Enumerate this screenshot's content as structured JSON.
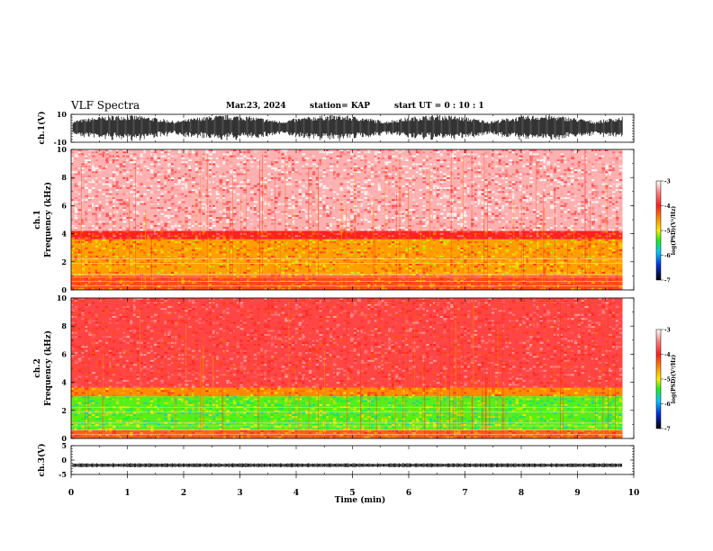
{
  "header": {
    "title": "VLF Spectra",
    "date": "Mar.23, 2024",
    "station": "station= KAP",
    "start": "start  UT =   0  : 10 : 1"
  },
  "chart_data": [
    {
      "type": "line",
      "panel": "ch1-waveform",
      "ylabel": "ch.1(V)",
      "ylim": [
        -10,
        10
      ],
      "yticks": [
        "10",
        "-10"
      ],
      "amplitude_typical": 9.5
    },
    {
      "type": "heatmap",
      "panel": "ch1-spectrogram",
      "ylabel": "ch.1\nFrequency (kHz)",
      "ylabel_line1": "ch.1",
      "ylabel_line2": "Frequency (kHz)",
      "ylim": [
        0,
        10
      ],
      "yticks": [
        "0",
        "2",
        "4",
        "6",
        "8",
        "10"
      ],
      "colorbar": {
        "label": "log(PSD)(V²/Hz)",
        "range": [
          -7,
          -3
        ],
        "ticks": [
          "-3",
          "-4",
          "-5",
          "-6",
          "-7"
        ],
        "colors": [
          "#ffffff",
          "#ff3030",
          "#ffee00",
          "#20ee20",
          "#00c8ff",
          "#0000c8",
          "#000000"
        ]
      },
      "bands": [
        {
          "from_khz": 0,
          "to_khz": 1,
          "level": -4.2
        },
        {
          "from_khz": 1,
          "to_khz": 3.6,
          "level": -4.6
        },
        {
          "from_khz": 3.6,
          "to_khz": 4.2,
          "level": -4.0
        },
        {
          "from_khz": 4.2,
          "to_khz": 10,
          "level": -3.3
        }
      ]
    },
    {
      "type": "heatmap",
      "panel": "ch2-spectrogram",
      "ylabel_line1": "ch.2",
      "ylabel_line2": "Frequency (kHz)",
      "ylim": [
        0,
        10
      ],
      "yticks": [
        "0",
        "2",
        "4",
        "6",
        "8",
        "10"
      ],
      "colorbar": {
        "label": "log(PSD)(V²/Hz)",
        "range": [
          -7,
          -3
        ],
        "ticks": [
          "-3",
          "-4",
          "-5",
          "-6",
          "-7"
        ],
        "colors": [
          "#ffffff",
          "#ff3030",
          "#ffee00",
          "#20ee20",
          "#00c8ff",
          "#0000c8",
          "#000000"
        ]
      },
      "bands": [
        {
          "from_khz": 0,
          "to_khz": 0.6,
          "level": -4.3
        },
        {
          "from_khz": 0.6,
          "to_khz": 3.0,
          "level": -5.3
        },
        {
          "from_khz": 3.0,
          "to_khz": 3.6,
          "level": -4.5
        },
        {
          "from_khz": 3.6,
          "to_khz": 10,
          "level": -3.8
        }
      ]
    },
    {
      "type": "line",
      "panel": "ch3-waveform",
      "ylabel": "ch.3(V)",
      "ylim": [
        -5,
        5
      ],
      "yticks": [
        "5",
        "0",
        "-5"
      ],
      "level_v": -1.8
    }
  ],
  "xaxis": {
    "label": "Time (min)",
    "range": [
      0,
      10
    ],
    "ticks": [
      "0",
      "1",
      "2",
      "3",
      "4",
      "5",
      "6",
      "7",
      "8",
      "9",
      "10"
    ],
    "data_end_min": 9.8
  }
}
